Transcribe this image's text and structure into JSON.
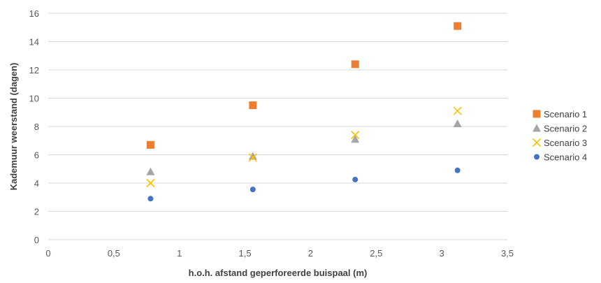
{
  "chart_data": {
    "type": "scatter",
    "title": "",
    "xlabel": "h.o.h. afstand geperforeerde buispaal (m)",
    "ylabel": "Kademuur weerstand (dagen)",
    "xlim": [
      0,
      3.5
    ],
    "ylim": [
      0,
      16
    ],
    "x_ticks": [
      0,
      0.5,
      1,
      1.5,
      2,
      2.5,
      3,
      3.5
    ],
    "x_tick_labels": [
      "0",
      "0,5",
      "1",
      "1,5",
      "2",
      "2,5",
      "3",
      "3,5"
    ],
    "y_ticks": [
      0,
      2,
      4,
      6,
      8,
      10,
      12,
      14,
      16
    ],
    "y_tick_labels": [
      "0",
      "2",
      "4",
      "6",
      "8",
      "10",
      "12",
      "14",
      "16"
    ],
    "grid": "horizontal",
    "legend_position": "right",
    "series": [
      {
        "name": "Scenario 1",
        "marker": "square",
        "color": "#ED7D31",
        "points": [
          [
            0.78,
            6.7
          ],
          [
            1.56,
            9.5
          ],
          [
            2.34,
            12.4
          ],
          [
            3.12,
            15.1
          ]
        ]
      },
      {
        "name": "Scenario 2",
        "marker": "triangle",
        "color": "#A5A5A5",
        "points": [
          [
            0.78,
            4.8
          ],
          [
            1.56,
            5.9
          ],
          [
            2.34,
            7.1
          ],
          [
            3.12,
            8.2
          ]
        ]
      },
      {
        "name": "Scenario 3",
        "marker": "x",
        "color": "#FFC000",
        "points": [
          [
            0.78,
            4.0
          ],
          [
            1.56,
            5.8
          ],
          [
            2.34,
            7.4
          ],
          [
            3.12,
            9.1
          ]
        ]
      },
      {
        "name": "Scenario 4",
        "marker": "circle",
        "color": "#4472C4",
        "points": [
          [
            0.78,
            2.9
          ],
          [
            1.56,
            3.55
          ],
          [
            2.34,
            4.25
          ],
          [
            3.12,
            4.9
          ]
        ]
      }
    ]
  }
}
